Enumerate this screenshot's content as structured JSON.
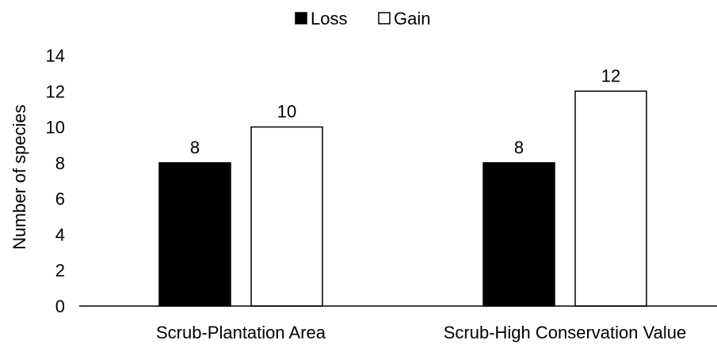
{
  "chart_data": {
    "type": "bar",
    "title": "",
    "xlabel": "",
    "ylabel": "Number of species",
    "ylim": [
      0,
      14
    ],
    "yticks": [
      0,
      2,
      4,
      6,
      8,
      10,
      12,
      14
    ],
    "grid": false,
    "legend_position": "top-center",
    "categories": [
      "Scrub-Plantation Area",
      "Scrub-High Conservation Value"
    ],
    "series": [
      {
        "name": "Loss",
        "values": [
          8,
          8
        ],
        "fill": "#000000",
        "stroke": "#000000"
      },
      {
        "name": "Gain",
        "values": [
          10,
          12
        ],
        "fill": "#ffffff",
        "stroke": "#000000"
      }
    ],
    "data_labels": true
  }
}
